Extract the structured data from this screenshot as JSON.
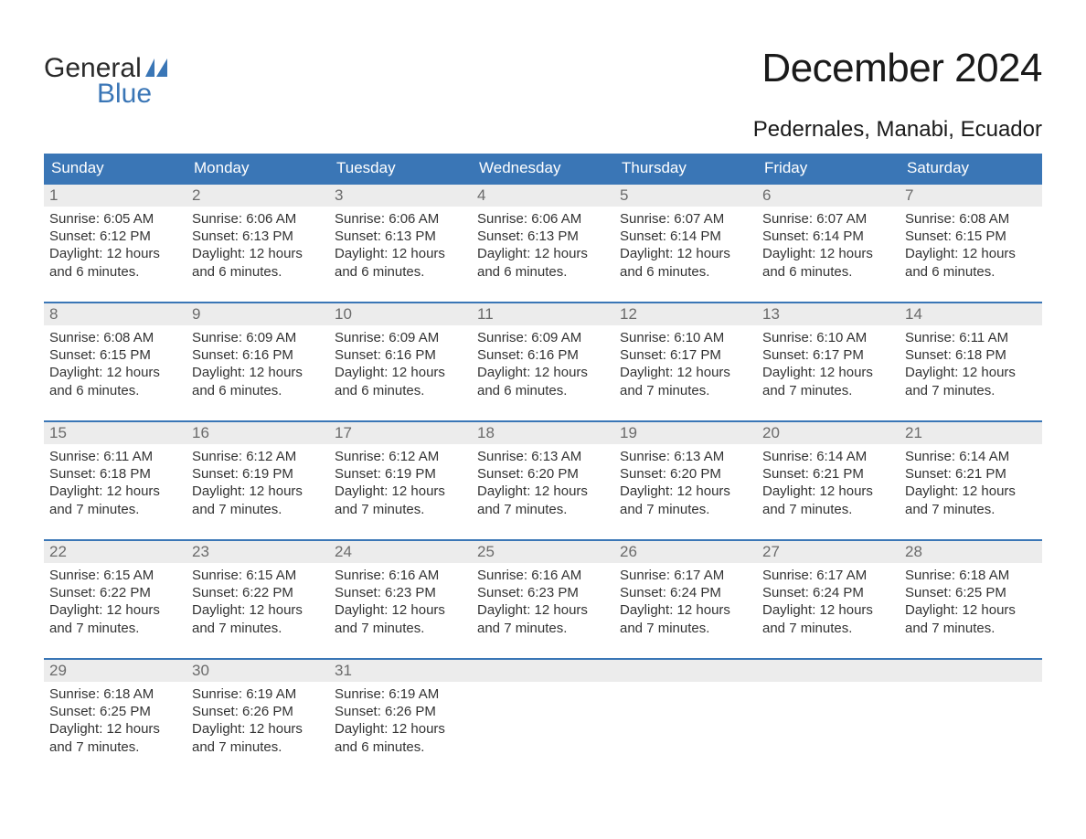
{
  "logo": {
    "text_top": "General",
    "text_bottom": "Blue",
    "brand_color": "#3a76b6"
  },
  "header": {
    "month_title": "December 2024",
    "location": "Pedernales, Manabi, Ecuador"
  },
  "calendar": {
    "type": "table",
    "header_bg": "#3a76b6",
    "header_fg": "#ffffff",
    "week_border_color": "#3a76b6",
    "daynum_bg": "#ececec",
    "daynum_fg": "#6b6b6b",
    "body_fg": "#333333",
    "background_color": "#ffffff",
    "title_fontsize": 44,
    "location_fontsize": 24,
    "dow_fontsize": 17,
    "body_fontsize": 15,
    "days_of_week": [
      "Sunday",
      "Monday",
      "Tuesday",
      "Wednesday",
      "Thursday",
      "Friday",
      "Saturday"
    ],
    "weeks": [
      [
        {
          "n": "1",
          "sunrise": "Sunrise: 6:05 AM",
          "sunset": "Sunset: 6:12 PM",
          "d1": "Daylight: 12 hours",
          "d2": "and 6 minutes."
        },
        {
          "n": "2",
          "sunrise": "Sunrise: 6:06 AM",
          "sunset": "Sunset: 6:13 PM",
          "d1": "Daylight: 12 hours",
          "d2": "and 6 minutes."
        },
        {
          "n": "3",
          "sunrise": "Sunrise: 6:06 AM",
          "sunset": "Sunset: 6:13 PM",
          "d1": "Daylight: 12 hours",
          "d2": "and 6 minutes."
        },
        {
          "n": "4",
          "sunrise": "Sunrise: 6:06 AM",
          "sunset": "Sunset: 6:13 PM",
          "d1": "Daylight: 12 hours",
          "d2": "and 6 minutes."
        },
        {
          "n": "5",
          "sunrise": "Sunrise: 6:07 AM",
          "sunset": "Sunset: 6:14 PM",
          "d1": "Daylight: 12 hours",
          "d2": "and 6 minutes."
        },
        {
          "n": "6",
          "sunrise": "Sunrise: 6:07 AM",
          "sunset": "Sunset: 6:14 PM",
          "d1": "Daylight: 12 hours",
          "d2": "and 6 minutes."
        },
        {
          "n": "7",
          "sunrise": "Sunrise: 6:08 AM",
          "sunset": "Sunset: 6:15 PM",
          "d1": "Daylight: 12 hours",
          "d2": "and 6 minutes."
        }
      ],
      [
        {
          "n": "8",
          "sunrise": "Sunrise: 6:08 AM",
          "sunset": "Sunset: 6:15 PM",
          "d1": "Daylight: 12 hours",
          "d2": "and 6 minutes."
        },
        {
          "n": "9",
          "sunrise": "Sunrise: 6:09 AM",
          "sunset": "Sunset: 6:16 PM",
          "d1": "Daylight: 12 hours",
          "d2": "and 6 minutes."
        },
        {
          "n": "10",
          "sunrise": "Sunrise: 6:09 AM",
          "sunset": "Sunset: 6:16 PM",
          "d1": "Daylight: 12 hours",
          "d2": "and 6 minutes."
        },
        {
          "n": "11",
          "sunrise": "Sunrise: 6:09 AM",
          "sunset": "Sunset: 6:16 PM",
          "d1": "Daylight: 12 hours",
          "d2": "and 6 minutes."
        },
        {
          "n": "12",
          "sunrise": "Sunrise: 6:10 AM",
          "sunset": "Sunset: 6:17 PM",
          "d1": "Daylight: 12 hours",
          "d2": "and 7 minutes."
        },
        {
          "n": "13",
          "sunrise": "Sunrise: 6:10 AM",
          "sunset": "Sunset: 6:17 PM",
          "d1": "Daylight: 12 hours",
          "d2": "and 7 minutes."
        },
        {
          "n": "14",
          "sunrise": "Sunrise: 6:11 AM",
          "sunset": "Sunset: 6:18 PM",
          "d1": "Daylight: 12 hours",
          "d2": "and 7 minutes."
        }
      ],
      [
        {
          "n": "15",
          "sunrise": "Sunrise: 6:11 AM",
          "sunset": "Sunset: 6:18 PM",
          "d1": "Daylight: 12 hours",
          "d2": "and 7 minutes."
        },
        {
          "n": "16",
          "sunrise": "Sunrise: 6:12 AM",
          "sunset": "Sunset: 6:19 PM",
          "d1": "Daylight: 12 hours",
          "d2": "and 7 minutes."
        },
        {
          "n": "17",
          "sunrise": "Sunrise: 6:12 AM",
          "sunset": "Sunset: 6:19 PM",
          "d1": "Daylight: 12 hours",
          "d2": "and 7 minutes."
        },
        {
          "n": "18",
          "sunrise": "Sunrise: 6:13 AM",
          "sunset": "Sunset: 6:20 PM",
          "d1": "Daylight: 12 hours",
          "d2": "and 7 minutes."
        },
        {
          "n": "19",
          "sunrise": "Sunrise: 6:13 AM",
          "sunset": "Sunset: 6:20 PM",
          "d1": "Daylight: 12 hours",
          "d2": "and 7 minutes."
        },
        {
          "n": "20",
          "sunrise": "Sunrise: 6:14 AM",
          "sunset": "Sunset: 6:21 PM",
          "d1": "Daylight: 12 hours",
          "d2": "and 7 minutes."
        },
        {
          "n": "21",
          "sunrise": "Sunrise: 6:14 AM",
          "sunset": "Sunset: 6:21 PM",
          "d1": "Daylight: 12 hours",
          "d2": "and 7 minutes."
        }
      ],
      [
        {
          "n": "22",
          "sunrise": "Sunrise: 6:15 AM",
          "sunset": "Sunset: 6:22 PM",
          "d1": "Daylight: 12 hours",
          "d2": "and 7 minutes."
        },
        {
          "n": "23",
          "sunrise": "Sunrise: 6:15 AM",
          "sunset": "Sunset: 6:22 PM",
          "d1": "Daylight: 12 hours",
          "d2": "and 7 minutes."
        },
        {
          "n": "24",
          "sunrise": "Sunrise: 6:16 AM",
          "sunset": "Sunset: 6:23 PM",
          "d1": "Daylight: 12 hours",
          "d2": "and 7 minutes."
        },
        {
          "n": "25",
          "sunrise": "Sunrise: 6:16 AM",
          "sunset": "Sunset: 6:23 PM",
          "d1": "Daylight: 12 hours",
          "d2": "and 7 minutes."
        },
        {
          "n": "26",
          "sunrise": "Sunrise: 6:17 AM",
          "sunset": "Sunset: 6:24 PM",
          "d1": "Daylight: 12 hours",
          "d2": "and 7 minutes."
        },
        {
          "n": "27",
          "sunrise": "Sunrise: 6:17 AM",
          "sunset": "Sunset: 6:24 PM",
          "d1": "Daylight: 12 hours",
          "d2": "and 7 minutes."
        },
        {
          "n": "28",
          "sunrise": "Sunrise: 6:18 AM",
          "sunset": "Sunset: 6:25 PM",
          "d1": "Daylight: 12 hours",
          "d2": "and 7 minutes."
        }
      ],
      [
        {
          "n": "29",
          "sunrise": "Sunrise: 6:18 AM",
          "sunset": "Sunset: 6:25 PM",
          "d1": "Daylight: 12 hours",
          "d2": "and 7 minutes."
        },
        {
          "n": "30",
          "sunrise": "Sunrise: 6:19 AM",
          "sunset": "Sunset: 6:26 PM",
          "d1": "Daylight: 12 hours",
          "d2": "and 7 minutes."
        },
        {
          "n": "31",
          "sunrise": "Sunrise: 6:19 AM",
          "sunset": "Sunset: 6:26 PM",
          "d1": "Daylight: 12 hours",
          "d2": "and 6 minutes."
        },
        null,
        null,
        null,
        null
      ]
    ]
  }
}
